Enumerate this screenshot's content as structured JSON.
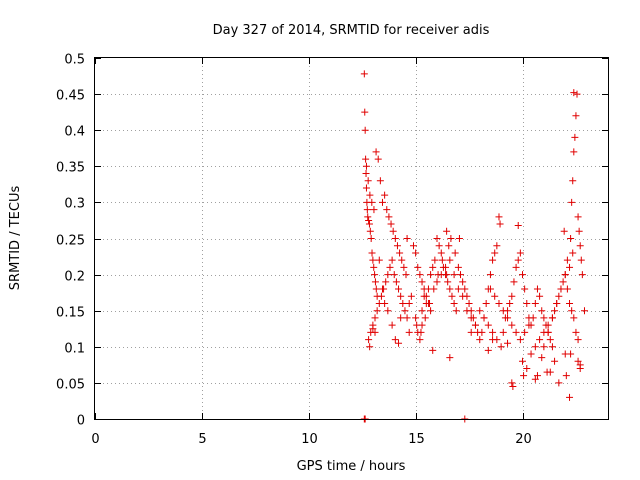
{
  "chart_data": {
    "type": "scatter",
    "title": "Day 327 of 2014, SRMTID for receiver adis",
    "xlabel": "GPS time / hours",
    "ylabel": "SRMTID / TECUs",
    "xlim": [
      0,
      24
    ],
    "ylim": [
      0,
      0.5
    ],
    "xticks": [
      "0",
      "5",
      "10",
      "15",
      "20"
    ],
    "yticks": [
      "0",
      "0.05",
      "0.1",
      "0.15",
      "0.2",
      "0.25",
      "0.3",
      "0.35",
      "0.4",
      "0.45",
      "0.5"
    ],
    "grid": true,
    "marker": "+",
    "color": "#e00000",
    "series": [
      {
        "x": [
          12.6,
          12.62,
          12.64,
          12.66,
          12.68,
          12.7,
          12.72,
          12.74,
          12.76,
          12.8,
          12.84,
          12.88,
          12.92,
          12.96,
          13.0,
          13.04,
          13.08,
          13.12,
          13.16,
          13.2,
          12.7,
          12.78,
          12.86,
          12.95,
          13.05,
          13.15,
          13.25,
          13.35,
          13.45,
          13.55,
          13.65,
          13.75,
          13.85,
          13.95,
          14.05,
          14.15,
          14.25,
          14.35,
          14.45,
          14.55,
          12.9,
          13.0,
          13.1,
          13.2,
          13.3,
          13.4,
          13.5,
          13.6,
          13.7,
          13.8,
          13.9,
          14.0,
          14.1,
          14.2,
          14.3,
          14.4,
          14.5,
          14.6,
          14.7,
          14.8,
          12.8,
          12.85,
          13.1,
          13.3,
          13.45,
          13.55,
          13.7,
          13.9,
          14.05,
          14.3,
          14.6,
          14.9,
          15.0,
          15.1,
          15.2,
          15.3,
          15.4,
          15.5,
          15.6,
          15.7,
          15.0,
          15.1,
          15.2,
          15.3,
          15.4,
          15.5,
          15.6,
          15.7,
          15.8,
          15.9,
          16.0,
          16.1,
          16.2,
          16.3,
          16.4,
          16.5,
          16.6,
          16.7,
          16.8,
          16.9,
          15.05,
          15.25,
          15.45,
          15.65,
          15.85,
          16.05,
          16.25,
          16.45,
          16.65,
          16.85,
          17.0,
          17.1,
          17.2,
          17.3,
          17.4,
          17.5,
          17.6,
          17.7,
          17.8,
          17.9,
          16.0,
          16.2,
          16.4,
          16.6,
          16.8,
          17.0,
          17.2,
          17.4,
          17.6,
          17.8,
          18.0,
          18.1,
          18.2,
          18.3,
          18.4,
          18.5,
          18.6,
          18.7,
          18.8,
          18.9,
          18.0,
          18.2,
          18.4,
          18.6,
          18.8,
          19.0,
          19.1,
          19.2,
          19.3,
          19.4,
          19.5,
          19.6,
          19.7,
          19.8,
          19.9,
          20.0,
          20.1,
          20.2,
          20.3,
          20.4,
          18.5,
          18.7,
          18.9,
          19.1,
          19.3,
          19.5,
          19.7,
          19.9,
          20.1,
          20.3,
          20.5,
          20.6,
          20.7,
          20.8,
          20.9,
          21.0,
          21.1,
          21.2,
          21.3,
          21.4,
          20.0,
          20.2,
          20.4,
          20.6,
          20.8,
          21.0,
          21.2,
          21.4,
          21.5,
          21.6,
          21.7,
          21.8,
          21.9,
          22.0,
          22.1,
          22.2,
          22.3,
          22.4,
          22.5,
          22.6,
          21.0,
          21.2,
          21.4,
          21.6,
          21.8,
          22.0,
          22.1,
          22.2,
          22.25,
          22.3,
          22.35,
          22.4,
          22.45,
          22.5,
          22.55,
          22.6,
          22.65,
          22.7,
          22.75,
          22.8,
          19.5,
          19.55,
          20.05,
          20.6,
          21.15,
          21.7,
          22.05,
          22.25,
          22.35,
          22.4,
          22.6,
          22.7,
          16.45,
          16.55,
          17.05,
          18.95,
          19.8,
          21.95,
          22.9,
          22.2,
          12.6,
          12.62,
          12.64,
          17.3,
          13.0,
          14.2,
          15.8,
          16.6,
          18.4,
          19.3,
          20.9,
          21.5,
          22.0,
          22.7,
          14.7,
          15.3,
          17.6,
          18.6,
          20.7,
          21.3
        ],
        "y": [
          0.478,
          0.425,
          0.4,
          0.36,
          0.34,
          0.32,
          0.3,
          0.29,
          0.28,
          0.275,
          0.27,
          0.26,
          0.25,
          0.23,
          0.22,
          0.21,
          0.2,
          0.19,
          0.18,
          0.17,
          0.35,
          0.33,
          0.31,
          0.3,
          0.29,
          0.37,
          0.36,
          0.33,
          0.3,
          0.31,
          0.29,
          0.28,
          0.27,
          0.26,
          0.25,
          0.24,
          0.23,
          0.22,
          0.21,
          0.2,
          0.12,
          0.13,
          0.14,
          0.15,
          0.16,
          0.17,
          0.18,
          0.19,
          0.2,
          0.21,
          0.22,
          0.2,
          0.19,
          0.18,
          0.17,
          0.16,
          0.15,
          0.14,
          0.16,
          0.17,
          0.11,
          0.1,
          0.12,
          0.22,
          0.18,
          0.16,
          0.15,
          0.13,
          0.11,
          0.14,
          0.25,
          0.24,
          0.23,
          0.21,
          0.2,
          0.19,
          0.18,
          0.17,
          0.16,
          0.15,
          0.14,
          0.12,
          0.11,
          0.15,
          0.17,
          0.16,
          0.18,
          0.2,
          0.21,
          0.22,
          0.25,
          0.24,
          0.23,
          0.21,
          0.2,
          0.19,
          0.18,
          0.17,
          0.16,
          0.15,
          0.13,
          0.12,
          0.14,
          0.16,
          0.18,
          0.2,
          0.22,
          0.26,
          0.25,
          0.23,
          0.21,
          0.2,
          0.19,
          0.18,
          0.17,
          0.16,
          0.15,
          0.14,
          0.13,
          0.12,
          0.19,
          0.2,
          0.21,
          0.22,
          0.2,
          0.18,
          0.17,
          0.15,
          0.14,
          0.13,
          0.11,
          0.12,
          0.14,
          0.16,
          0.18,
          0.2,
          0.22,
          0.23,
          0.24,
          0.28,
          0.15,
          0.14,
          0.13,
          0.12,
          0.11,
          0.1,
          0.12,
          0.14,
          0.15,
          0.16,
          0.17,
          0.19,
          0.21,
          0.22,
          0.23,
          0.2,
          0.18,
          0.16,
          0.14,
          0.13,
          0.18,
          0.17,
          0.16,
          0.15,
          0.14,
          0.13,
          0.12,
          0.11,
          0.12,
          0.13,
          0.14,
          0.16,
          0.18,
          0.17,
          0.15,
          0.14,
          0.13,
          0.12,
          0.11,
          0.1,
          0.08,
          0.07,
          0.09,
          0.1,
          0.11,
          0.12,
          0.13,
          0.14,
          0.15,
          0.16,
          0.17,
          0.18,
          0.19,
          0.2,
          0.18,
          0.16,
          0.15,
          0.14,
          0.12,
          0.11,
          0.1,
          0.12,
          0.14,
          0.16,
          0.18,
          0.2,
          0.22,
          0.21,
          0.25,
          0.3,
          0.33,
          0.37,
          0.39,
          0.42,
          0.45,
          0.28,
          0.26,
          0.24,
          0.22,
          0.2,
          0.05,
          0.045,
          0.06,
          0.055,
          0.065,
          0.05,
          0.06,
          0.09,
          0.23,
          0.452,
          0.08,
          0.07,
          0.2,
          0.24,
          0.25,
          0.27,
          0.268,
          0.26,
          0.15,
          0.03,
          0.0,
          0.0,
          0.0,
          0.0,
          0.125,
          0.105,
          0.095,
          0.085,
          0.095,
          0.105,
          0.085,
          0.08,
          0.09,
          0.075,
          0.12,
          0.13,
          0.12,
          0.11,
          0.06,
          0.065
        ]
      }
    ]
  }
}
